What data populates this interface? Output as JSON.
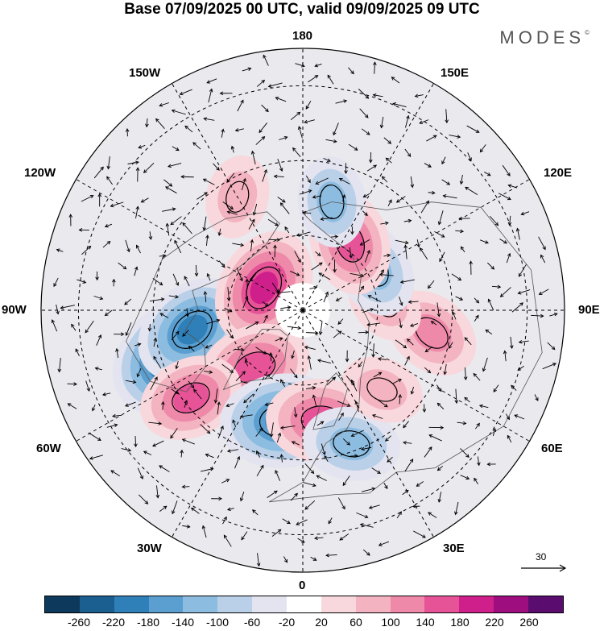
{
  "title": "Base 07/09/2025 00 UTC, valid 09/09/2025 09 UTC",
  "brand": "MODES",
  "brand_mark": "©",
  "lon_labels": {
    "top": "180",
    "bottom": "0",
    "left": "90W",
    "right": "90E",
    "upper_left_1": "150W",
    "upper_left_2": "120W",
    "upper_right_1": "150E",
    "upper_right_2": "120E",
    "lower_left_1": "60W",
    "lower_left_2": "30W",
    "lower_right_1": "60E",
    "lower_right_2": "30E"
  },
  "reference_vector": {
    "label": "30"
  },
  "colorbar": {
    "colors": [
      "#0d3a5c",
      "#1a5f8f",
      "#2f7fb8",
      "#5a9fd0",
      "#8cbce0",
      "#b9d0e8",
      "#e4e4f0",
      "#ffffff",
      "#f8d8dc",
      "#f3b3c0",
      "#ef89aa",
      "#e65397",
      "#cf1f8a",
      "#9e0e7e",
      "#5a0d6e"
    ],
    "ticks": [
      "-260",
      "-220",
      "-180",
      "-140",
      "-100",
      "-60",
      "-20",
      "20",
      "60",
      "100",
      "140",
      "180",
      "220",
      "260"
    ]
  },
  "anomalies": [
    {
      "lon": -70,
      "lat": 55,
      "value": -270
    },
    {
      "lon": -80,
      "lat": 60,
      "value": -200
    },
    {
      "lon": -120,
      "lat": 78,
      "value": 200
    },
    {
      "lon": -40,
      "lat": 70,
      "value": 180
    },
    {
      "lon": -52,
      "lat": 52,
      "value": 160
    },
    {
      "lon": -10,
      "lat": 60,
      "value": -220
    },
    {
      "lon": 10,
      "lat": 60,
      "value": 180
    },
    {
      "lon": 20,
      "lat": 52,
      "value": -140
    },
    {
      "lon": 45,
      "lat": 60,
      "value": 100
    },
    {
      "lon": 80,
      "lat": 55,
      "value": 140
    },
    {
      "lon": 95,
      "lat": 68,
      "value": 100
    },
    {
      "lon": 120,
      "lat": 68,
      "value": -140
    },
    {
      "lon": 145,
      "lat": 68,
      "value": 160
    },
    {
      "lon": 165,
      "lat": 60,
      "value": -120
    },
    {
      "lon": -150,
      "lat": 55,
      "value": 100
    }
  ]
}
